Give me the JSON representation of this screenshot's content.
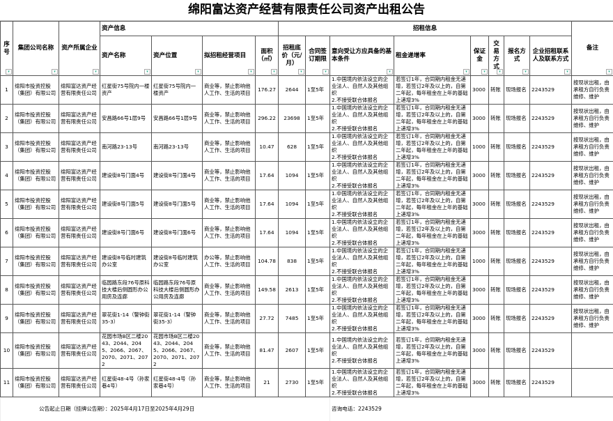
{
  "title": "绵阳富达资产经营有限责任公司资产出租公告",
  "groups": {
    "asset_info": "资产信息",
    "lease_info": "招租信息"
  },
  "headers": [
    "序号",
    "集团公司名称",
    "资产所属企业",
    "资产名称",
    "资产位置",
    "拟招租经营项目",
    "面积（㎡）",
    "招租底价（元/月）",
    "合同签订期限",
    "意向受让方应具备的基本条件",
    "租金递增率",
    "保证金",
    "交易方式",
    "报名方式",
    "企业招租联系人及联系方式",
    "备注"
  ],
  "filter_icon": "dropdown-filter-icon",
  "rows": [
    {
      "no": "1",
      "group": "绵阳市投资控股（集团）有限公司",
      "owner": "绵阳富达资产经营有限责任公司",
      "name": "红星街75号院内一楼资产",
      "location": "红星街75号院内一楼资产",
      "use": "商业等，禁止影响他人工作、生活的项目",
      "area": "176.27",
      "price": "2644",
      "term": "1至5年",
      "conditions": "1.中国境内依法设立的企业法人、自然人及其他组织\n2.不接受联合体报名",
      "increase": "若签订1年，合同期内租金无递增，若签订2年及以上的，自第二年起，每年租金在上年的基础上递增3%",
      "deposit": "3000",
      "trade": "转账",
      "signup": "现场报名",
      "contact": "2243529",
      "remark": "按现状出租，由承租方自行负责维修、维护"
    },
    {
      "no": "2",
      "group": "绵阳市投资控股（集团）有限公司",
      "owner": "绵阳富达资产经营有限责任公司",
      "name": "安昌路66号1层9号",
      "location": "安昌路66号1层9号",
      "use": "商业等，禁止影响他人工作、生活的项目",
      "area": "296.22",
      "price": "23698",
      "term": "1至5年",
      "conditions": "1.中国境内依法设立的企业法人、自然人及其他组织\n2.不接受联合体报名",
      "increase": "若签订1年，合同期内租金无递增，若签订2年及以上的，自第二年起，每年租金在上年的基础上递增3%",
      "deposit": "3000",
      "trade": "转账",
      "signup": "现场报名",
      "contact": "2243529",
      "remark": "按现状出租，由承租方自行负责维修、维护"
    },
    {
      "no": "3",
      "group": "绵阳市投资控股（集团）有限公司",
      "owner": "绵阳富达资产经营有限责任公司",
      "name": "南河路23-13号",
      "location": "南河路23-13号",
      "use": "商业等，禁止影响他人工作、生活的项目",
      "area": "10.47",
      "price": "628",
      "term": "1至5年",
      "conditions": "1.中国境内依法设立的企业法人、自然人及其他组织\n2.不接受联合体报名",
      "increase": "若签订1年，合同期内租金无递增，若签订2年及以上的，自第二年起，每年租金在上年的基础上递增3%",
      "deposit": "1000",
      "trade": "转账",
      "signup": "现场报名",
      "contact": "2243529",
      "remark": "按现状出租，由承租方自行负责维修、维护"
    },
    {
      "no": "4",
      "group": "绵阳市投资控股（集团）有限公司",
      "owner": "绵阳富达资产经营有限责任公司",
      "name": "建设街8号门面4号",
      "location": "建设街8号门面4号",
      "use": "商业等，禁止影响他人工作、生活的项目",
      "area": "17.64",
      "price": "1094",
      "term": "1至5年",
      "conditions": "1.中国境内依法设立的企业法人、自然人及其他组织\n2.不接受联合体报名",
      "increase": "若签订1年，合同期内租金无递增，若签订2年及以上的，自第二年起，每年租金在上年的基础上递增3%",
      "deposit": "3000",
      "trade": "转账",
      "signup": "现场报名",
      "contact": "2243529",
      "remark": "按现状出租，由承租方自行负责维修、维护"
    },
    {
      "no": "5",
      "group": "绵阳市投资控股（集团）有限公司",
      "owner": "绵阳富达资产经营有限责任公司",
      "name": "建设街8号门面5号",
      "location": "建设街8号门面5号",
      "use": "商业等，禁止影响他人工作、生活的项目",
      "area": "17.64",
      "price": "1094",
      "term": "1至5年",
      "conditions": "1.中国境内依法设立的企业法人、自然人及其他组织\n2.不接受联合体报名",
      "increase": "若签订1年，合同期内租金无递增，若签订2年及以上的，自第二年起，每年租金在上年的基础上递增3%",
      "deposit": "3000",
      "trade": "转账",
      "signup": "现场报名",
      "contact": "2243529",
      "remark": "按现状出租，由承租方自行负责维修、维护"
    },
    {
      "no": "6",
      "group": "绵阳市投资控股（集团）有限公司",
      "owner": "绵阳富达资产经营有限责任公司",
      "name": "建设街8号门面6号",
      "location": "建设街8号门面6号",
      "use": "商业等，禁止影响他人工作、生活的项目",
      "area": "17.64",
      "price": "1094",
      "term": "1至5年",
      "conditions": "1.中国境内依法设立的企业法人、自然人及其他组织\n2.不接受联合体报名",
      "increase": "若签订1年，合同期内租金无递增，若签订2年及以上的，自第二年起，每年租金在上年的基础上递增3%",
      "deposit": "3000",
      "trade": "转账",
      "signup": "现场报名",
      "contact": "2243529",
      "remark": "按现状出租，由承租方自行负责维修、维护"
    },
    {
      "no": "7",
      "group": "绵阳市投资控股（集团）有限公司",
      "owner": "绵阳富达资产经营有限责任公司",
      "name": "建设街8号临时建筑办公室",
      "location": "建设街8号临时建筑办公室",
      "use": "办公等，禁止影响他人工作、生活的项目",
      "area": "104.78",
      "price": "838",
      "term": "1至5年",
      "conditions": "1.中国境内依法设立的企业法人、自然人及其他组织\n2.不接受联合体报名",
      "increase": "若签订1年，合同期内租金无递增，若签订2年及以上的，自第二年起，每年租金在上年的基础上递增3%",
      "deposit": "1000",
      "trade": "转账",
      "signup": "现场报名",
      "contact": "2243529",
      "remark": "按现状出租，由承租方自行负责维修、维护"
    },
    {
      "no": "8",
      "group": "绵阳市投资控股（集团）有限公司",
      "owner": "绵阳富达资产经营有限责任公司",
      "name": "临园路东段76号原科技大楼后侧圆形办公用房及连廊",
      "location": "临园路东段76号原科技大楼后侧圆形办公用房及连廊",
      "use": "商业等，禁止影响他人工作、生活的项目",
      "area": "149.58",
      "price": "2613",
      "term": "1至5年",
      "conditions": "1.中国境内依法设立的企业法人、自然人及其他组织\n2.不接受联合体报名",
      "increase": "若签订1年，合同期内租金无递增，若签订2年及以上的，自第二年起，每年租金在上年的基础上递增3%",
      "deposit": "3000",
      "trade": "转账",
      "signup": "现场报名",
      "contact": "2243529",
      "remark": "按现状出租，由承租方自行负责维修、维护"
    },
    {
      "no": "9",
      "group": "绵阳市投资控股（集团）有限公司",
      "owner": "绵阳富达资产经营有限责任公司",
      "name": "翠花街1-14（警钟街35-3）",
      "location": "翠花街1-14（警钟街35-3）",
      "use": "商业等，禁止影响他人工作、生活的项目",
      "area": "27.72",
      "price": "7485",
      "term": "1至5年",
      "conditions": "1.中国境内依法设立的企业法人、自然人及其他组织\n2.不接受联合体报名",
      "increase": "若签订1年，合同期内租金无递增，若签订2年及以上的，自第二年起，每年租金在上年的基础上递增3%",
      "deposit": "3000",
      "trade": "转账",
      "signup": "现场报名",
      "contact": "2243529",
      "remark": "按现状出租，由承租方自行负责维修、维护"
    },
    {
      "no": "10",
      "group": "绵阳市投资控股（集团）有限公司",
      "owner": "绵阳富达资产经营有限责任公司",
      "name": "花园市场B区二楼2043、2044、2045、2066、2067、2070、2071、2072",
      "location": "花园市场B区二楼2043、2044、2045、2066、2067、2070、2071、2072",
      "use": "商业等，禁止影响他人工作、生活的项目",
      "area": "81.47",
      "price": "2607",
      "term": "1至5年",
      "conditions": "1.中国境内依法设立的企业法人、自然人及其他组织\n2.不接受联合体报名",
      "increase": "若签订1年，合同期内租金无递增，若签订2年及以上的，自第二年起，每年租金在上年的基础上递增3%",
      "deposit": "3000",
      "trade": "转账",
      "signup": "现场报名",
      "contact": "2243529",
      "remark": ""
    },
    {
      "no": "11",
      "group": "绵阳市投资控股（集团）有限公司",
      "owner": "绵阳富达资产经营有限责任公司",
      "name": "红星街48-4号（孙家巷4号）",
      "location": "红星街48-4号（孙家巷4号）",
      "use": "商业等，禁止影响他人工作、生活的项目",
      "area": "21",
      "price": "2730",
      "term": "1至5年",
      "conditions": "1.中国境内依法设立的企业法人、自然人及其他组织\n2.不接受联合体报名",
      "increase": "若签订1年，合同期内租金无递增，若签订2年及以上的，自第二年起，每年租金在上年的基础上递增3%",
      "deposit": "3000",
      "trade": "转账",
      "signup": "现场报名",
      "contact": "2243529",
      "remark": ""
    }
  ],
  "footer": {
    "period": "公告起止日期（挂牌公告期）：2025年4月17日至2025年4月29日",
    "phone": "咨询电话：2243529"
  }
}
